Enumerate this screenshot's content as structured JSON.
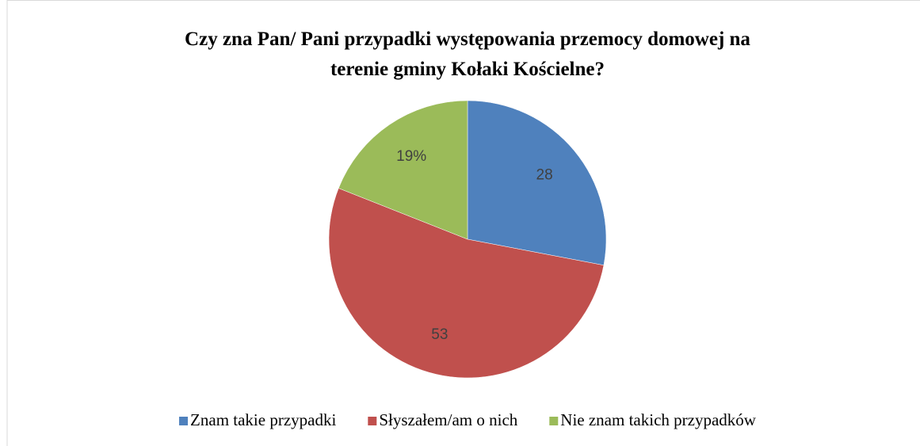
{
  "chart_data": {
    "type": "pie",
    "title": "Czy zna Pan/ Pani przypadki występowania przemocy domowej na terenie gminy Kołaki Kościelne?",
    "title_lines": [
      "Czy zna Pan/ Pani przypadki występowania przemocy domowej na",
      "terenie gminy Kołaki Kościelne?"
    ],
    "categories": [
      "Znam takie przypadki",
      "Słyszałem/am o nich",
      "Nie znam takich przypadków"
    ],
    "values": [
      28,
      53,
      19
    ],
    "value_labels": [
      "28",
      "53",
      "19%"
    ],
    "colors": [
      "#4f81bd",
      "#c0504d",
      "#9bbb59"
    ],
    "legend": "bottom"
  }
}
